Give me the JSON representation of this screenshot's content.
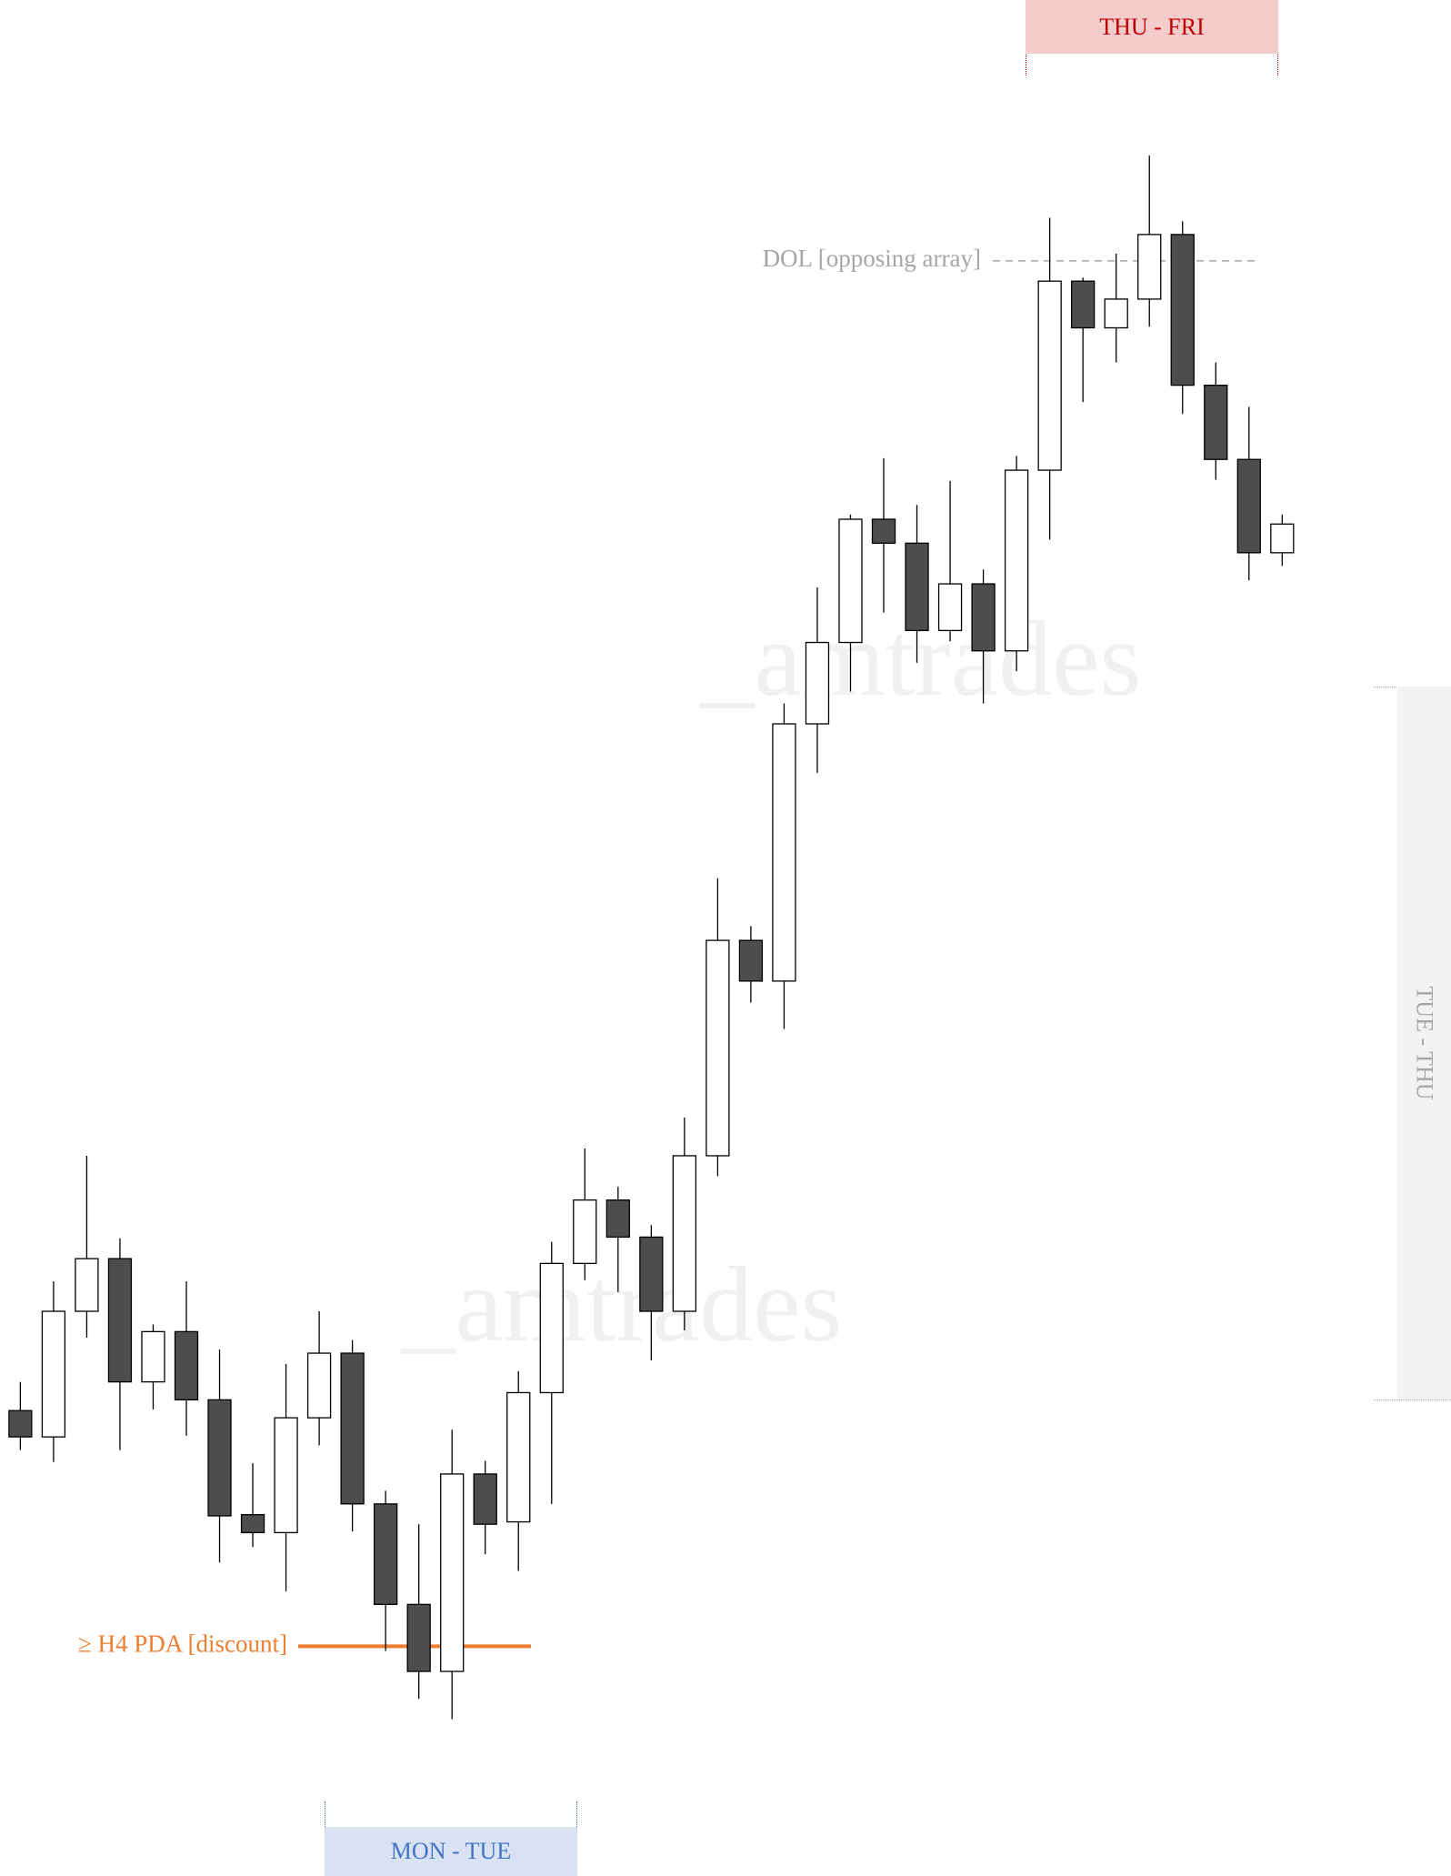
{
  "chart_data": {
    "type": "candlestick",
    "categories": [
      null,
      null,
      null,
      null,
      null,
      null,
      null,
      null,
      null,
      null,
      null,
      null,
      null,
      null,
      null,
      null,
      null,
      null,
      null,
      null,
      null,
      null,
      null,
      null,
      null,
      null,
      null,
      null,
      null,
      null,
      null,
      null,
      null,
      null,
      null,
      null,
      null,
      null,
      null
    ],
    "open": [
      389,
      367,
      472,
      516,
      413,
      455,
      398,
      302,
      287,
      383,
      437,
      311,
      227,
      171,
      336,
      296,
      404,
      512,
      565,
      534,
      472,
      602,
      782,
      748,
      963,
      1031,
      1134,
      1114,
      1041,
      1080,
      1024,
      1175,
      1333,
      1294,
      1318,
      1372,
      1246,
      1184,
      1106
    ],
    "high": [
      413,
      497,
      602,
      533,
      461,
      497,
      440,
      345,
      428,
      472,
      448,
      322,
      294,
      373,
      347,
      422,
      530,
      608,
      576,
      544,
      634,
      834,
      794,
      980,
      1077,
      1138,
      1185,
      1146,
      1166,
      1092,
      1187,
      1386,
      1336,
      1356,
      1438,
      1383,
      1265,
      1228,
      1138
    ],
    "low": [
      356,
      346,
      450,
      356,
      390,
      368,
      262,
      275,
      238,
      360,
      288,
      188,
      148,
      131,
      269,
      255,
      311,
      498,
      488,
      431,
      456,
      585,
      730,
      708,
      922,
      990,
      1056,
      1014,
      1032,
      980,
      1007,
      1117,
      1232,
      1265,
      1295,
      1222,
      1167,
      1083,
      1095
    ],
    "close": [
      367,
      472,
      516,
      413,
      455,
      398,
      301,
      287,
      383,
      437,
      311,
      227,
      171,
      336,
      294,
      404,
      512,
      565,
      534,
      472,
      602,
      782,
      748,
      963,
      1031,
      1134,
      1114,
      1041,
      1080,
      1024,
      1175,
      1333,
      1294,
      1318,
      1372,
      1246,
      1184,
      1106,
      1130
    ],
    "up_color": "#ffffff",
    "down_color": "#4d4d4d",
    "ylim": [
      0,
      1568
    ],
    "levels": [
      {
        "label": "DOL [opposing array]",
        "value": 1350,
        "color": "#a6a6a6"
      },
      {
        "label": "≥ H4 PDA [discount]",
        "value": 192,
        "color": "#ed7d31"
      }
    ],
    "zones": [
      {
        "label": "THU - FRI",
        "color": "#c00000",
        "fill": "#f4cccc"
      },
      {
        "label": "MON - TUE",
        "color": "#4472c4",
        "fill": "#d9e2f3"
      },
      {
        "label": "TUE - THU",
        "color": "#a6a6a6",
        "fill": "#f2f2f2"
      }
    ],
    "watermarks": [
      "_amtrades",
      "_amtrades"
    ]
  }
}
